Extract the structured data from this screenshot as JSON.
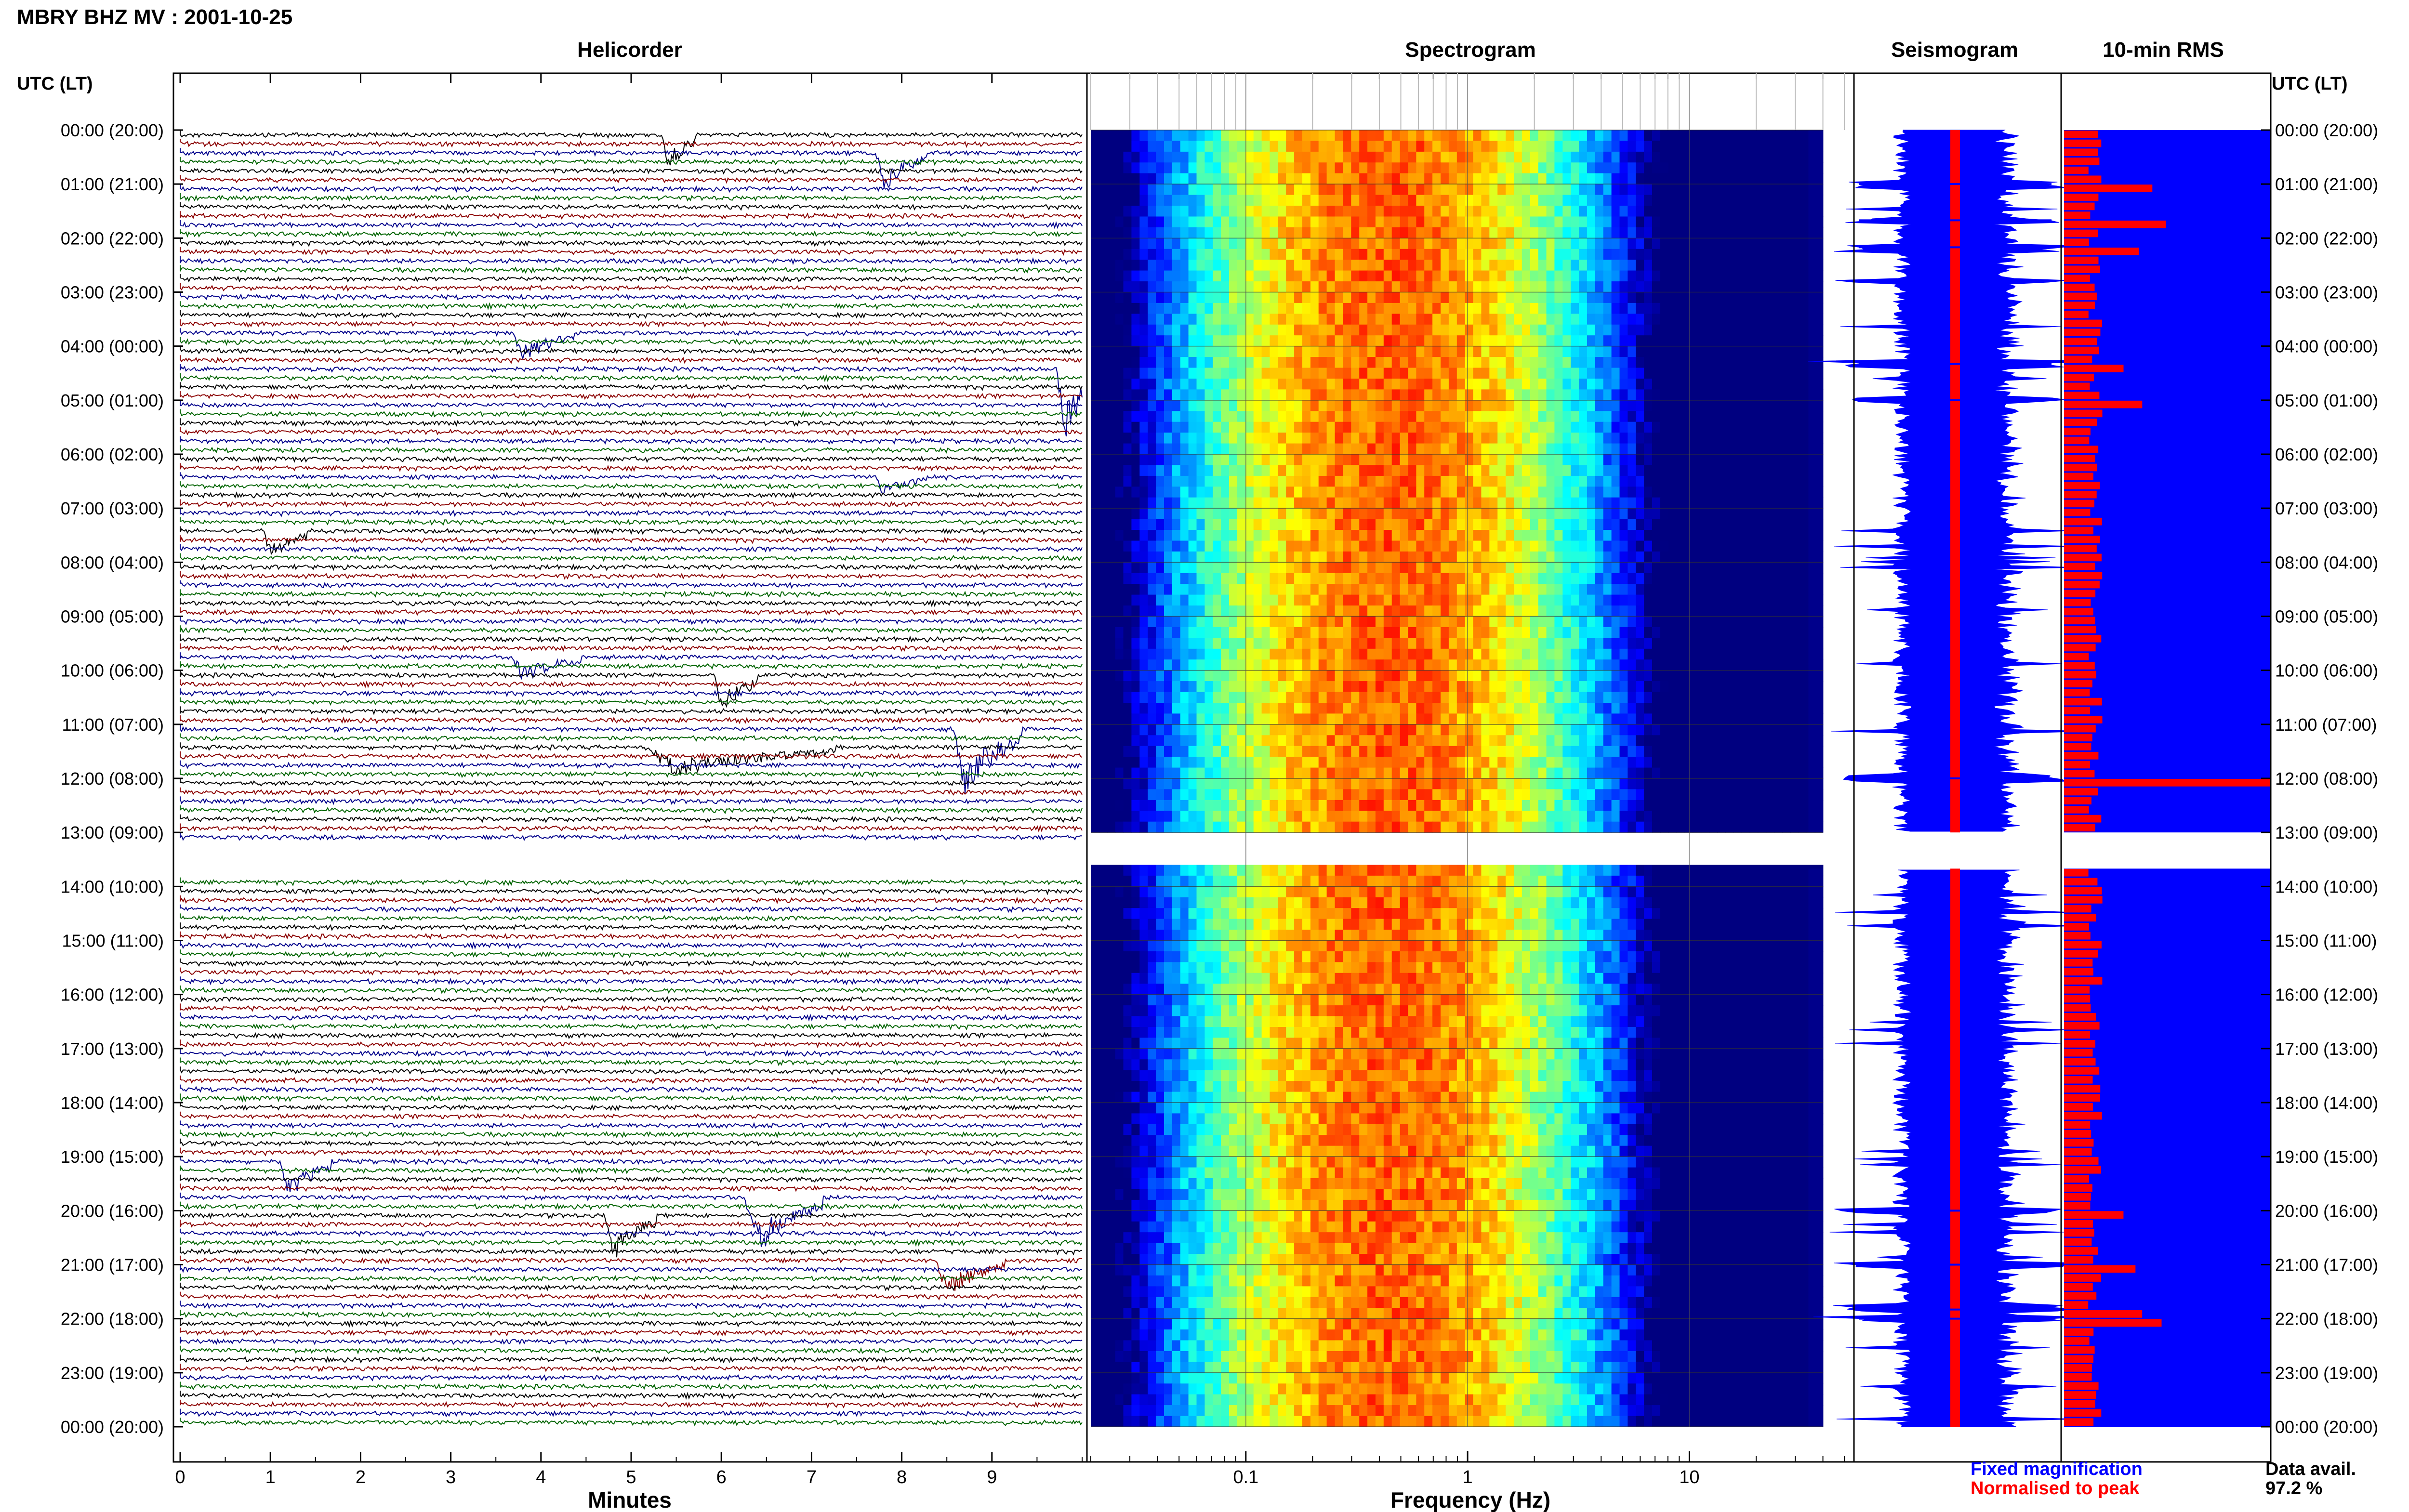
{
  "header": {
    "title": "MBRY BHZ MV : 2001-10-25"
  },
  "time_axis": {
    "left_label": "UTC (LT)",
    "right_label": "UTC (LT)",
    "ticks": [
      "00:00 (20:00)",
      "01:00 (21:00)",
      "02:00 (22:00)",
      "03:00 (23:00)",
      "04:00 (00:00)",
      "05:00 (01:00)",
      "06:00 (02:00)",
      "07:00 (03:00)",
      "08:00 (04:00)",
      "09:00 (05:00)",
      "10:00 (06:00)",
      "11:00 (07:00)",
      "12:00 (08:00)",
      "13:00 (09:00)",
      "14:00 (10:00)",
      "15:00 (11:00)",
      "16:00 (12:00)",
      "17:00 (13:00)",
      "18:00 (14:00)",
      "19:00 (15:00)",
      "20:00 (16:00)",
      "21:00 (17:00)",
      "22:00 (18:00)",
      "23:00 (19:00)",
      "00:00 (20:00)"
    ]
  },
  "panels": {
    "helicorder": {
      "title": "Helicorder",
      "xlabel": "Minutes",
      "xticks": [
        "0",
        "1",
        "2",
        "3",
        "4",
        "5",
        "6",
        "7",
        "8",
        "9"
      ],
      "trace_colors": [
        "#000000",
        "#8b0000",
        "#00008b",
        "#006400"
      ]
    },
    "spectrogram": {
      "title": "Spectrogram",
      "xlabel": "Frequency (Hz)",
      "xticks": [
        "0.1",
        "1",
        "10"
      ]
    },
    "seismogram": {
      "title": "Seismogram"
    },
    "rms": {
      "title": "10-min RMS"
    }
  },
  "legend": {
    "fixed": "Fixed magnification",
    "normalised": "Normalised to peak",
    "fixed_color": "#0000ff",
    "normalised_color": "#ff0000"
  },
  "availability": {
    "label": "Data avail.",
    "value": "97.2 %"
  },
  "chart_data": {
    "type": "helicorder",
    "data_gap_hours": [
      13.0,
      13.67
    ],
    "rms_peak_hours": [
      1.0,
      1.67,
      2.17,
      4.33,
      5.0,
      12.0,
      20.0,
      21.0,
      21.83,
      22.0
    ],
    "spectrogram_peak_band_hz": [
      0.3,
      0.6
    ],
    "frequency_range_hz": [
      0.02,
      40
    ],
    "minutes_range": [
      0,
      10
    ]
  }
}
